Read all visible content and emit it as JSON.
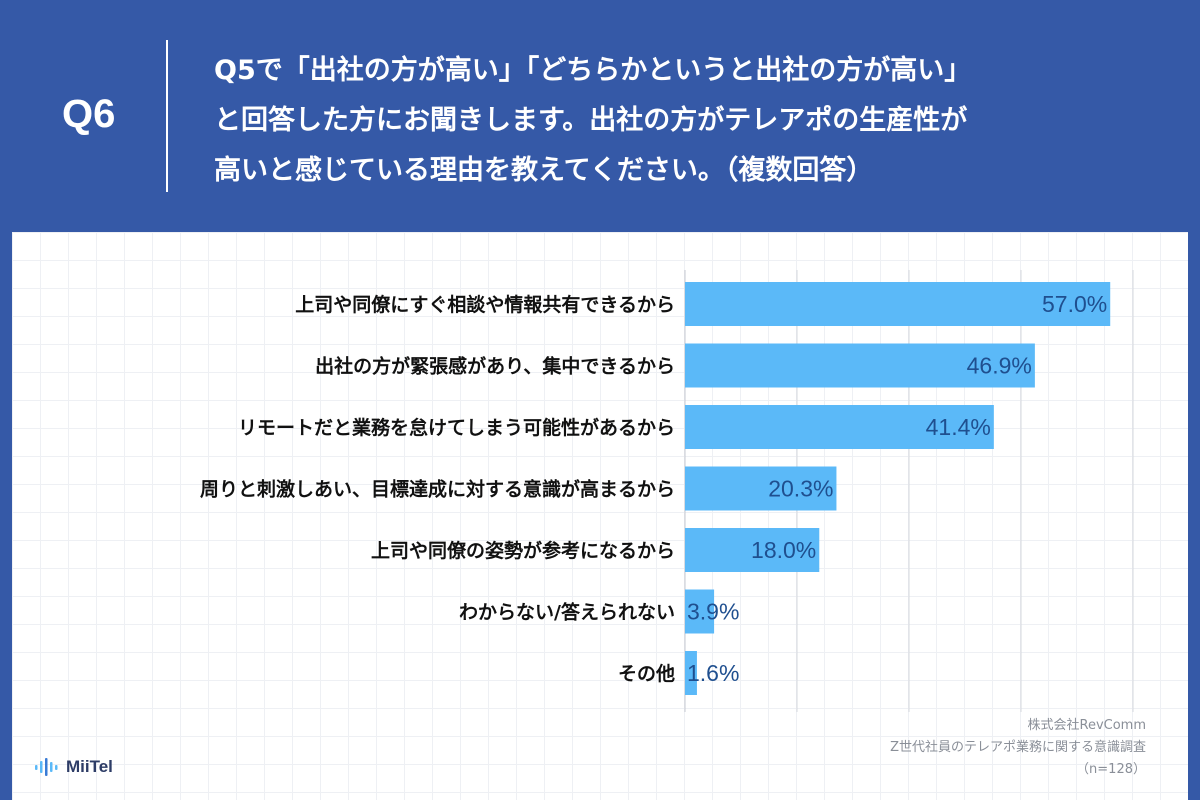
{
  "header": {
    "q_label": "Q6",
    "question_lines": [
      "Q5で「出社の方が高い」「どちらかというと出社の方が高い」",
      "と回答した方にお聞きします。出社の方がテレアポの生産性が",
      "高いと感じている理由を教えてください。（複数回答）"
    ]
  },
  "chart_data": {
    "type": "bar",
    "orientation": "horizontal",
    "categories": [
      "上司や同僚にすぐ相談や情報共有できるから",
      "出社の方が緊張感があり、集中できるから",
      "リモートだと業務を怠けてしまう可能性があるから",
      "周りと刺激しあい、目標達成に対する意識が高まるから",
      "上司や同僚の姿勢が参考になるから",
      "わからない/答えられない",
      "その他"
    ],
    "values": [
      57.0,
      46.9,
      41.4,
      20.3,
      18.0,
      3.9,
      1.6
    ],
    "value_labels": [
      "57.0%",
      "46.9%",
      "41.4%",
      "20.3%",
      "18.0%",
      "3.9%",
      "1.6%"
    ],
    "xlim": [
      0,
      60
    ],
    "bar_color": "#5bb9f8",
    "label_color": "#1f4f8f",
    "grid": true
  },
  "footer": {
    "company": "株式会社RevComm",
    "survey": "Z世代社員のテレアポ業務に関する意識調査",
    "sample": "（n=128）",
    "logo_text": "MiiTel",
    "logo_icon": "soundwave-icon"
  }
}
